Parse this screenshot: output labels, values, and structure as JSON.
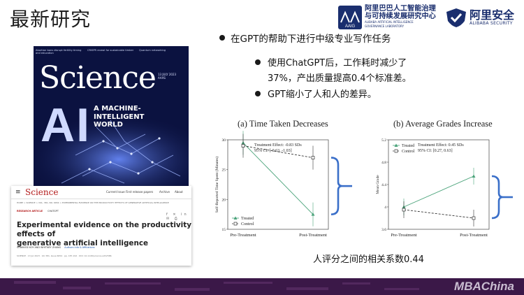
{
  "slide": {
    "title": "最新研究",
    "bullets": {
      "main": "在GPT的帮助下进行中级专业写作任务",
      "sub1_line1": "使用ChatGPT后，工作耗时减少了",
      "sub1_line2": "37%，产出质量提高0.4个标准差。",
      "sub2": "GPT缩小了人和人的差异。"
    },
    "correlation_note": "人评分之间的相关系数0.44",
    "colors": {
      "accent": "#3a6fc9",
      "treated": "#4aa37a",
      "control": "#333333",
      "footer": "#3b1848"
    }
  },
  "logos": {
    "aaig": {
      "badge": "AAIG",
      "line1": "阿里巴巴人工智能治理",
      "line2": "与可持续发展研究中心",
      "line3a": "ALIBABA ARTIFICIAL INTELLIGENCE",
      "line3b": "GOVERNANCE LABORATORY"
    },
    "security": {
      "name_cn": "阿里安全",
      "name_en": "ALIBABA SECURITY",
      "icon": "shield-icon"
    }
  },
  "cover": {
    "masthead": "Science",
    "ai": "AI",
    "subtitle_l1": "A MACHINE-",
    "subtitle_l2": "INTELLIGENT",
    "subtitle_l3": "WORLD",
    "issue": "13 JULY 2023",
    "publisher": "AAAS",
    "headlines": [
      "Abortion bans disrupt fertility timing and education",
      "CRISPR reveal for sustainable timber",
      "Quantum networking"
    ]
  },
  "article": {
    "logo": "Science",
    "nav": [
      "Current Issue",
      "First release papers",
      "Archive",
      "About"
    ],
    "breadcrumbs": "HOME > SCIENCE > VOL. 381, NO. 6654 > EXPERIMENTAL EVIDENCE ON THE PRODUCTIVITY EFFECTS OF GENERATIVE ARTIFICIAL INTELLIGENCE",
    "tag": "RESEARCH ARTICLE",
    "tag2": "CHATGPT",
    "title_l1": "Experimental evidence on the productivity effects of",
    "title_l2": "generative artificial intelligence",
    "authors": "SHAKKED NOY",
    "authors2": "AND WHITNEY ZHANG",
    "affil": "Authors Info & Affiliations",
    "footer": "SCIENCE · 13 Jul 2023 · Vol 381, Issue 6654 · pp. 187-192 · DOI: 10.1126/science.adh2586"
  },
  "chart_data": [
    {
      "type": "line",
      "title": "(a) Time Taken Decreases",
      "ylabel": "Self-Reported Time Spent (Minutes)",
      "categories": [
        "Pre-Treatment",
        "Post-Treatment"
      ],
      "ylim": [
        15,
        30
      ],
      "yticks": [
        "15",
        "20",
        "25",
        "30"
      ],
      "series": [
        {
          "name": "Treated",
          "values": [
            29.5,
            17.5
          ],
          "err": [
            2,
            2
          ]
        },
        {
          "name": "Control",
          "values": [
            29.0,
            27.0
          ],
          "err": [
            2,
            2
          ]
        }
      ],
      "annotation_l1": "Treatment Effect:   -0.83 SDs",
      "annotation_l2": "95% CI:  [-0.63, -1.03]",
      "legend": "bottom-left"
    },
    {
      "type": "line",
      "title": "(b) Average Grades Increase",
      "ylabel": "Mean Grade",
      "categories": [
        "Pre-Treatment",
        "Post-Treatment"
      ],
      "ylim": [
        3.6,
        5.2
      ],
      "yticks": [
        "3.6",
        "4",
        "4.4",
        "4.8",
        "5.2"
      ],
      "series": [
        {
          "name": "Treated",
          "values": [
            4.0,
            4.55
          ],
          "err": [
            0.15,
            0.15
          ]
        },
        {
          "name": "Control",
          "values": [
            3.95,
            3.8
          ],
          "err": [
            0.15,
            0.15
          ]
        }
      ],
      "annotation_l1": "Treatment Effect:   0.45 SDs",
      "annotation_l2": "95% CI:  [0.27, 0.63]",
      "legend": "top-left"
    }
  ],
  "footer": {
    "watermark": "MBAChina"
  }
}
